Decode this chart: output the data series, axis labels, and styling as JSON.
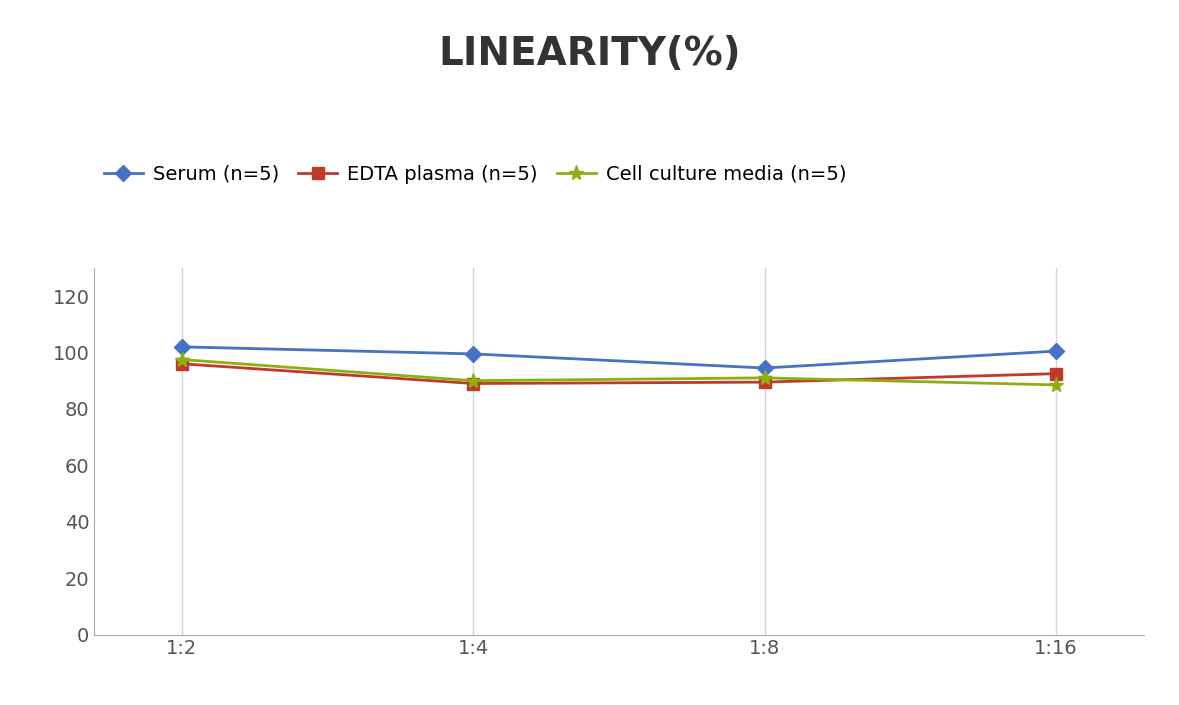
{
  "title": "LINEARITY(%)",
  "title_fontsize": 28,
  "title_fontweight": "bold",
  "x_labels": [
    "1:2",
    "1:4",
    "1:8",
    "1:16"
  ],
  "x_positions": [
    0,
    1,
    2,
    3
  ],
  "series": [
    {
      "label": "Serum (n=5)",
      "values": [
        102,
        99.5,
        94.5,
        100.5
      ],
      "color": "#4472C4",
      "marker": "D",
      "markersize": 8,
      "linewidth": 2
    },
    {
      "label": "EDTA plasma (n=5)",
      "values": [
        96,
        89,
        89.5,
        92.5
      ],
      "color": "#C0392B",
      "marker": "s",
      "markersize": 8,
      "linewidth": 2
    },
    {
      "label": "Cell culture media (n=5)",
      "values": [
        97.5,
        90,
        91,
        88.5
      ],
      "color": "#8DB010",
      "marker": "*",
      "markersize": 11,
      "linewidth": 2
    }
  ],
  "ylim": [
    0,
    130
  ],
  "yticks": [
    0,
    20,
    40,
    60,
    80,
    100,
    120
  ],
  "background_color": "#ffffff",
  "grid_color": "#d5d5d5",
  "legend_fontsize": 14,
  "axis_fontsize": 14
}
